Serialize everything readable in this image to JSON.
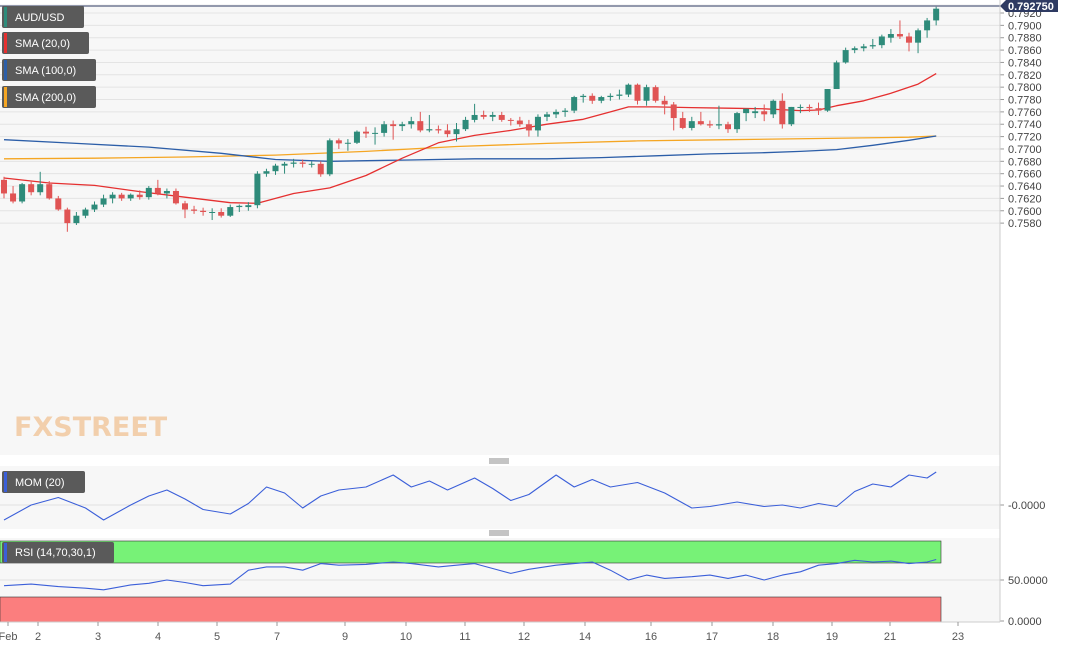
{
  "instrument": "AUD/USD",
  "last_price_label": "0.792750",
  "watermark": "FXSTREET",
  "colors": {
    "bull": "#2e8b7a",
    "bear": "#e05454",
    "sma20": "#e53030",
    "sma100": "#2c5ea8",
    "sma200": "#f5a623",
    "momentum": "#3b5fd9",
    "rsi": "#3b5fd9",
    "rsi_overbought": "#77f277",
    "rsi_oversold": "#fb7e7e",
    "legend_bg": "#5a5a5a",
    "plot_bg": "#f7f7f7",
    "last_price_box": "#2e3a62"
  },
  "main_pane": {
    "legend": [
      {
        "label": "AUD/USD",
        "swatch": "#2e8b7a"
      },
      {
        "label": "SMA (20,0)",
        "swatch": "#e53030"
      },
      {
        "label": "SMA (100,0)",
        "swatch": "#2c5ea8"
      },
      {
        "label": "SMA (200,0)",
        "swatch": "#f5a623"
      }
    ],
    "y_ticks": [
      "0.7920",
      "0.7900",
      "0.7880",
      "0.7860",
      "0.7840",
      "0.7820",
      "0.7800",
      "0.7780",
      "0.7760",
      "0.7740",
      "0.7720",
      "0.7700",
      "0.7680",
      "0.7660",
      "0.7640",
      "0.7620",
      "0.7600",
      "0.7580"
    ]
  },
  "momentum_pane": {
    "legend": "MOM (20)",
    "y_tick": "-0.0000"
  },
  "rsi_pane": {
    "legend": "RSI (14,70,30,1)",
    "y_ticks": [
      "50.0000",
      "0.0000"
    ]
  },
  "x_axis": {
    "labels": [
      "Feb",
      "2",
      "3",
      "4",
      "5",
      "7",
      "9",
      "10",
      "11",
      "12",
      "14",
      "16",
      "17",
      "18",
      "19",
      "21",
      "23"
    ]
  },
  "chart_data": {
    "type": "candlestick",
    "title": "AUD/USD",
    "ylim": [
      0.7566,
      0.793
    ],
    "candles": [
      [
        0.765,
        0.7655,
        0.762,
        0.7628
      ],
      [
        0.7628,
        0.764,
        0.7612,
        0.7615
      ],
      [
        0.7615,
        0.7645,
        0.7612,
        0.7643
      ],
      [
        0.7643,
        0.7647,
        0.7625,
        0.763
      ],
      [
        0.763,
        0.7663,
        0.7625,
        0.7643
      ],
      [
        0.7643,
        0.7648,
        0.7618,
        0.762
      ],
      [
        0.762,
        0.7624,
        0.76,
        0.7602
      ],
      [
        0.7602,
        0.7605,
        0.7566,
        0.758
      ],
      [
        0.758,
        0.7598,
        0.7577,
        0.7592
      ],
      [
        0.7592,
        0.7605,
        0.7588,
        0.7602
      ],
      [
        0.7602,
        0.7615,
        0.7598,
        0.761
      ],
      [
        0.761,
        0.7626,
        0.7606,
        0.762
      ],
      [
        0.762,
        0.763,
        0.7612,
        0.7626
      ],
      [
        0.7626,
        0.7629,
        0.7616,
        0.762
      ],
      [
        0.762,
        0.7628,
        0.7616,
        0.7626
      ],
      [
        0.7626,
        0.7633,
        0.7618,
        0.7622
      ],
      [
        0.7622,
        0.764,
        0.7618,
        0.7637
      ],
      [
        0.7637,
        0.765,
        0.7625,
        0.7628
      ],
      [
        0.7628,
        0.7636,
        0.762,
        0.7632
      ],
      [
        0.7632,
        0.7636,
        0.761,
        0.7612
      ],
      [
        0.7612,
        0.7616,
        0.7588,
        0.7602
      ],
      [
        0.7602,
        0.7608,
        0.7595,
        0.76
      ],
      [
        0.76,
        0.7605,
        0.7592,
        0.7598
      ],
      [
        0.7598,
        0.7604,
        0.7585,
        0.7598
      ],
      [
        0.7598,
        0.7604,
        0.7589,
        0.7592
      ],
      [
        0.7592,
        0.761,
        0.759,
        0.7606
      ],
      [
        0.7606,
        0.761,
        0.7598,
        0.7608
      ],
      [
        0.7606,
        0.7614,
        0.76,
        0.7609
      ],
      [
        0.7609,
        0.7664,
        0.7604,
        0.766
      ],
      [
        0.766,
        0.7668,
        0.7655,
        0.7664
      ],
      [
        0.7664,
        0.7676,
        0.7658,
        0.7673
      ],
      [
        0.7673,
        0.7679,
        0.766,
        0.7676
      ],
      [
        0.7676,
        0.7684,
        0.767,
        0.7678
      ],
      [
        0.7678,
        0.7683,
        0.767,
        0.7676
      ],
      [
        0.7676,
        0.768,
        0.767,
        0.7676
      ],
      [
        0.7676,
        0.768,
        0.7655,
        0.7659
      ],
      [
        0.7659,
        0.7717,
        0.7656,
        0.7714
      ],
      [
        0.7714,
        0.7717,
        0.77,
        0.7709
      ],
      [
        0.7709,
        0.7716,
        0.7697,
        0.771
      ],
      [
        0.771,
        0.773,
        0.7708,
        0.7728
      ],
      [
        0.7728,
        0.7736,
        0.7718,
        0.7725
      ],
      [
        0.7725,
        0.7735,
        0.7707,
        0.7726
      ],
      [
        0.7726,
        0.7745,
        0.772,
        0.774
      ],
      [
        0.774,
        0.7746,
        0.7715,
        0.7737
      ],
      [
        0.7737,
        0.7744,
        0.7729,
        0.774
      ],
      [
        0.774,
        0.7752,
        0.7733,
        0.7745
      ],
      [
        0.7745,
        0.776,
        0.7727,
        0.773
      ],
      [
        0.773,
        0.7755,
        0.7727,
        0.7732
      ],
      [
        0.7732,
        0.7738,
        0.7725,
        0.773
      ],
      [
        0.773,
        0.774,
        0.7719,
        0.7724
      ],
      [
        0.7724,
        0.7742,
        0.7712,
        0.7732
      ],
      [
        0.7732,
        0.7752,
        0.7729,
        0.7747
      ],
      [
        0.7747,
        0.7773,
        0.7743,
        0.7755
      ],
      [
        0.7755,
        0.7762,
        0.7748,
        0.7752
      ],
      [
        0.7752,
        0.776,
        0.7745,
        0.7755
      ],
      [
        0.7755,
        0.776,
        0.7744,
        0.7747
      ],
      [
        0.7747,
        0.775,
        0.7738,
        0.7746
      ],
      [
        0.7746,
        0.7752,
        0.7736,
        0.774
      ],
      [
        0.774,
        0.7747,
        0.772,
        0.773
      ],
      [
        0.773,
        0.7756,
        0.772,
        0.7752
      ],
      [
        0.7752,
        0.776,
        0.7745,
        0.7756
      ],
      [
        0.7756,
        0.7764,
        0.775,
        0.776
      ],
      [
        0.776,
        0.7766,
        0.7752,
        0.7762
      ],
      [
        0.7762,
        0.7786,
        0.7758,
        0.7784
      ],
      [
        0.7784,
        0.7789,
        0.7775,
        0.7786
      ],
      [
        0.7786,
        0.779,
        0.7773,
        0.7778
      ],
      [
        0.7778,
        0.7786,
        0.7774,
        0.7784
      ],
      [
        0.7784,
        0.779,
        0.7778,
        0.7786
      ],
      [
        0.7786,
        0.7796,
        0.778,
        0.7788
      ],
      [
        0.7788,
        0.7806,
        0.7784,
        0.7804
      ],
      [
        0.7804,
        0.7806,
        0.7772,
        0.7778
      ],
      [
        0.7778,
        0.7804,
        0.777,
        0.78
      ],
      [
        0.78,
        0.7803,
        0.7775,
        0.7778
      ],
      [
        0.7778,
        0.7786,
        0.7756,
        0.7772
      ],
      [
        0.7772,
        0.7776,
        0.773,
        0.775
      ],
      [
        0.775,
        0.776,
        0.7732,
        0.7734
      ],
      [
        0.7734,
        0.7752,
        0.773,
        0.7745
      ],
      [
        0.7745,
        0.776,
        0.7738,
        0.774
      ],
      [
        0.774,
        0.7746,
        0.7734,
        0.7738
      ],
      [
        0.7738,
        0.777,
        0.7732,
        0.774
      ],
      [
        0.774,
        0.7744,
        0.7726,
        0.7732
      ],
      [
        0.7732,
        0.776,
        0.7726,
        0.7758
      ],
      [
        0.7758,
        0.7765,
        0.7745,
        0.7765
      ],
      [
        0.7758,
        0.7768,
        0.775,
        0.7761
      ],
      [
        0.7761,
        0.7772,
        0.7745,
        0.7756
      ],
      [
        0.7756,
        0.778,
        0.775,
        0.7778
      ],
      [
        0.7778,
        0.779,
        0.7733,
        0.774
      ],
      [
        0.774,
        0.7768,
        0.7737,
        0.7768
      ],
      [
        0.7768,
        0.7772,
        0.7758,
        0.7768
      ],
      [
        0.7768,
        0.7772,
        0.776,
        0.7766
      ],
      [
        0.7766,
        0.7775,
        0.7755,
        0.7762
      ],
      [
        0.7762,
        0.7797,
        0.776,
        0.7797
      ],
      [
        0.7797,
        0.7843,
        0.7797,
        0.784
      ],
      [
        0.784,
        0.7864,
        0.7838,
        0.786
      ],
      [
        0.786,
        0.7866,
        0.7855,
        0.7863
      ],
      [
        0.7863,
        0.787,
        0.7858,
        0.7866
      ],
      [
        0.7866,
        0.7878,
        0.7862,
        0.7868
      ],
      [
        0.7868,
        0.7885,
        0.7863,
        0.7882
      ],
      [
        0.788,
        0.7894,
        0.7872,
        0.7886
      ],
      [
        0.7886,
        0.7908,
        0.7878,
        0.7882
      ],
      [
        0.7882,
        0.7888,
        0.7858,
        0.7872
      ],
      [
        0.7872,
        0.7895,
        0.7855,
        0.7892
      ],
      [
        0.7892,
        0.7912,
        0.788,
        0.7908
      ],
      [
        0.7908,
        0.793,
        0.79,
        0.7927
      ]
    ],
    "sma20": [
      [
        0,
        0.7653
      ],
      [
        5,
        0.7645
      ],
      [
        10,
        0.7641
      ],
      [
        15,
        0.7631
      ],
      [
        20,
        0.7622
      ],
      [
        25,
        0.7613
      ],
      [
        28,
        0.7612
      ],
      [
        32,
        0.7628
      ],
      [
        36,
        0.7637
      ],
      [
        40,
        0.7657
      ],
      [
        44,
        0.7685
      ],
      [
        48,
        0.771
      ],
      [
        52,
        0.7722
      ],
      [
        56,
        0.773
      ],
      [
        60,
        0.774
      ],
      [
        64,
        0.7748
      ],
      [
        67,
        0.776
      ],
      [
        69,
        0.7768
      ],
      [
        72,
        0.7768
      ],
      [
        76,
        0.7767
      ],
      [
        80,
        0.7766
      ],
      [
        84,
        0.7765
      ],
      [
        88,
        0.7762
      ],
      [
        90,
        0.7763
      ],
      [
        92,
        0.777
      ],
      [
        95,
        0.7778
      ],
      [
        98,
        0.779
      ],
      [
        101,
        0.7805
      ],
      [
        103,
        0.7822
      ]
    ],
    "sma100": [
      [
        0,
        0.7715
      ],
      [
        8,
        0.7709
      ],
      [
        16,
        0.7703
      ],
      [
        24,
        0.7693
      ],
      [
        30,
        0.7683
      ],
      [
        36,
        0.768
      ],
      [
        44,
        0.7682
      ],
      [
        52,
        0.7684
      ],
      [
        60,
        0.7684
      ],
      [
        66,
        0.7686
      ],
      [
        72,
        0.7689
      ],
      [
        78,
        0.7692
      ],
      [
        84,
        0.7694
      ],
      [
        88,
        0.7696
      ],
      [
        92,
        0.7699
      ],
      [
        96,
        0.7706
      ],
      [
        100,
        0.7714
      ],
      [
        103,
        0.7721
      ]
    ],
    "sma200": [
      [
        0,
        0.7684
      ],
      [
        10,
        0.7685
      ],
      [
        20,
        0.7687
      ],
      [
        30,
        0.769
      ],
      [
        40,
        0.7696
      ],
      [
        50,
        0.7704
      ],
      [
        60,
        0.7709
      ],
      [
        70,
        0.7713
      ],
      [
        80,
        0.7715
      ],
      [
        90,
        0.7717
      ],
      [
        100,
        0.7719
      ],
      [
        103,
        0.7721
      ]
    ],
    "momentum": [
      [
        0,
        -0.001
      ],
      [
        3,
        0.0
      ],
      [
        6,
        0.0005
      ],
      [
        9,
        -0.0002
      ],
      [
        11,
        -0.001
      ],
      [
        14,
        0.0
      ],
      [
        16,
        0.0006
      ],
      [
        18,
        0.001
      ],
      [
        20,
        0.0004
      ],
      [
        22,
        -0.0003
      ],
      [
        25,
        -0.0006
      ],
      [
        27,
        0.0001
      ],
      [
        29,
        0.0012
      ],
      [
        31,
        0.0008
      ],
      [
        33,
        -0.0002
      ],
      [
        35,
        0.0006
      ],
      [
        37,
        0.001
      ],
      [
        40,
        0.0012
      ],
      [
        43,
        0.002
      ],
      [
        45,
        0.0012
      ],
      [
        47,
        0.0016
      ],
      [
        49,
        0.001
      ],
      [
        52,
        0.0018
      ],
      [
        54,
        0.0011
      ],
      [
        56,
        0.0003
      ],
      [
        58,
        0.0007
      ],
      [
        61,
        0.002
      ],
      [
        63,
        0.0012
      ],
      [
        65,
        0.0017
      ],
      [
        67,
        0.0012
      ],
      [
        70,
        0.0015
      ],
      [
        73,
        0.0008
      ],
      [
        76,
        -0.0002
      ],
      [
        78,
        -0.0001
      ],
      [
        81,
        0.0002
      ],
      [
        84,
        -0.0001
      ],
      [
        86,
        0.0
      ],
      [
        88,
        -0.0002
      ],
      [
        90,
        0.0001
      ],
      [
        92,
        -0.0001
      ],
      [
        94,
        0.0009
      ],
      [
        96,
        0.0014
      ],
      [
        98,
        0.0012
      ],
      [
        100,
        0.002
      ],
      [
        102,
        0.0018
      ],
      [
        103,
        0.0022
      ]
    ],
    "rsi": [
      [
        0,
        43
      ],
      [
        3,
        45
      ],
      [
        6,
        42
      ],
      [
        9,
        40
      ],
      [
        11,
        38
      ],
      [
        14,
        44
      ],
      [
        16,
        46
      ],
      [
        18,
        50
      ],
      [
        20,
        47
      ],
      [
        22,
        43
      ],
      [
        25,
        45
      ],
      [
        27,
        62
      ],
      [
        29,
        66
      ],
      [
        31,
        66
      ],
      [
        33,
        62
      ],
      [
        35,
        70
      ],
      [
        37,
        68
      ],
      [
        40,
        69
      ],
      [
        43,
        72
      ],
      [
        45,
        70
      ],
      [
        48,
        66
      ],
      [
        50,
        68
      ],
      [
        52,
        70
      ],
      [
        54,
        64
      ],
      [
        56,
        58
      ],
      [
        58,
        63
      ],
      [
        61,
        68
      ],
      [
        63,
        70
      ],
      [
        65,
        72
      ],
      [
        67,
        62
      ],
      [
        69,
        50
      ],
      [
        71,
        56
      ],
      [
        73,
        52
      ],
      [
        76,
        54
      ],
      [
        78,
        56
      ],
      [
        80,
        52
      ],
      [
        82,
        56
      ],
      [
        84,
        50
      ],
      [
        86,
        56
      ],
      [
        88,
        60
      ],
      [
        90,
        68
      ],
      [
        92,
        70
      ],
      [
        94,
        74
      ],
      [
        96,
        72
      ],
      [
        98,
        73
      ],
      [
        100,
        70
      ],
      [
        102,
        72
      ],
      [
        103,
        75
      ]
    ]
  }
}
